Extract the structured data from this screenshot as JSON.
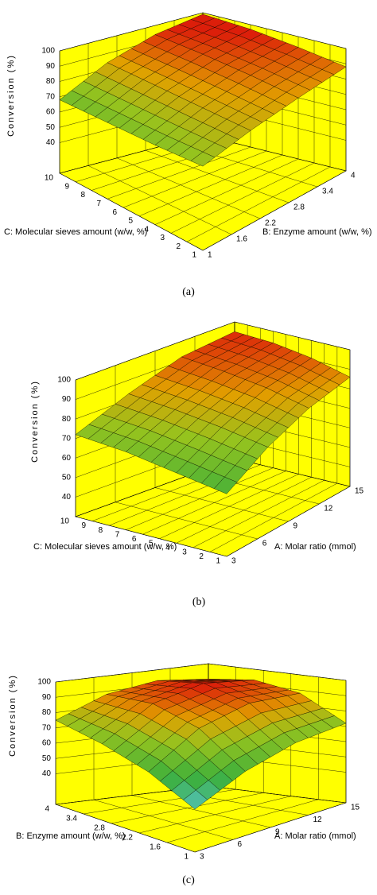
{
  "chart_data": [
    {
      "type": "surface",
      "caption": "(a)",
      "zlabel": "Conversion (%)",
      "xlabel": "C: Molecular sieves amount (w/w, %)",
      "ylabel": "B: Enzyme amount (w/w, %)",
      "xlim": [
        1,
        10
      ],
      "xticks": [
        1,
        2,
        3,
        4,
        5,
        6,
        7,
        8,
        9,
        10
      ],
      "ylim": [
        1,
        4
      ],
      "yticks": [
        1,
        1.6,
        2.2,
        2.8,
        3.4,
        4
      ],
      "zlim": [
        20,
        100
      ],
      "zticks": [
        40,
        50,
        60,
        70,
        80,
        90,
        100
      ],
      "x": [
        1,
        4,
        7,
        10
      ],
      "y": [
        1,
        2,
        3,
        4
      ],
      "z": [
        [
          75,
          81,
          85,
          88
        ],
        [
          72,
          82,
          89,
          93
        ],
        [
          70,
          83,
          92,
          97
        ],
        [
          68,
          84,
          94,
          99
        ]
      ],
      "wall_color": "#ffff00"
    },
    {
      "type": "surface",
      "caption": "(b)",
      "zlabel": "Conversion (%)",
      "xlabel": "C: Molecular sieves amount (w/w, %)",
      "ylabel": "A: Molar ratio (mmol)",
      "xlim": [
        1,
        10
      ],
      "xticks": [
        1,
        2,
        3,
        4,
        5,
        6,
        7,
        8,
        9,
        10
      ],
      "ylim": [
        3,
        15
      ],
      "yticks": [
        3,
        6,
        9,
        12,
        15
      ],
      "zlim": [
        30,
        100
      ],
      "zticks": [
        40,
        50,
        60,
        70,
        80,
        90,
        100
      ],
      "x": [
        1,
        4,
        7,
        10
      ],
      "y": [
        3,
        7,
        11,
        15
      ],
      "z": [
        [
          62,
          74,
          82,
          86
        ],
        [
          66,
          78,
          87,
          91
        ],
        [
          70,
          81,
          90,
          94
        ],
        [
          72,
          83,
          92,
          95
        ]
      ],
      "wall_color": "#ffff00"
    },
    {
      "type": "surface",
      "caption": "(c)",
      "zlabel": "Conversion (%)",
      "xlabel": "B: Enzyme amount (w/w, %)",
      "ylabel": "A: Molar ratio (mmol)",
      "xlim": [
        1,
        4
      ],
      "xticks": [
        1,
        1.6,
        2.2,
        2.8,
        3.4,
        4
      ],
      "ylim": [
        3,
        15
      ],
      "yticks": [
        3,
        6,
        9,
        12,
        15
      ],
      "zlim": [
        20,
        100
      ],
      "zticks": [
        40,
        50,
        60,
        70,
        80,
        90,
        100
      ],
      "x": [
        1,
        2,
        3,
        4
      ],
      "y": [
        3,
        7,
        11,
        15
      ],
      "z": [
        [
          48,
          62,
          70,
          72
        ],
        [
          62,
          82,
          90,
          88
        ],
        [
          70,
          90,
          97,
          93
        ],
        [
          75,
          88,
          93,
          90
        ]
      ],
      "wall_color": "#ffff00"
    }
  ]
}
